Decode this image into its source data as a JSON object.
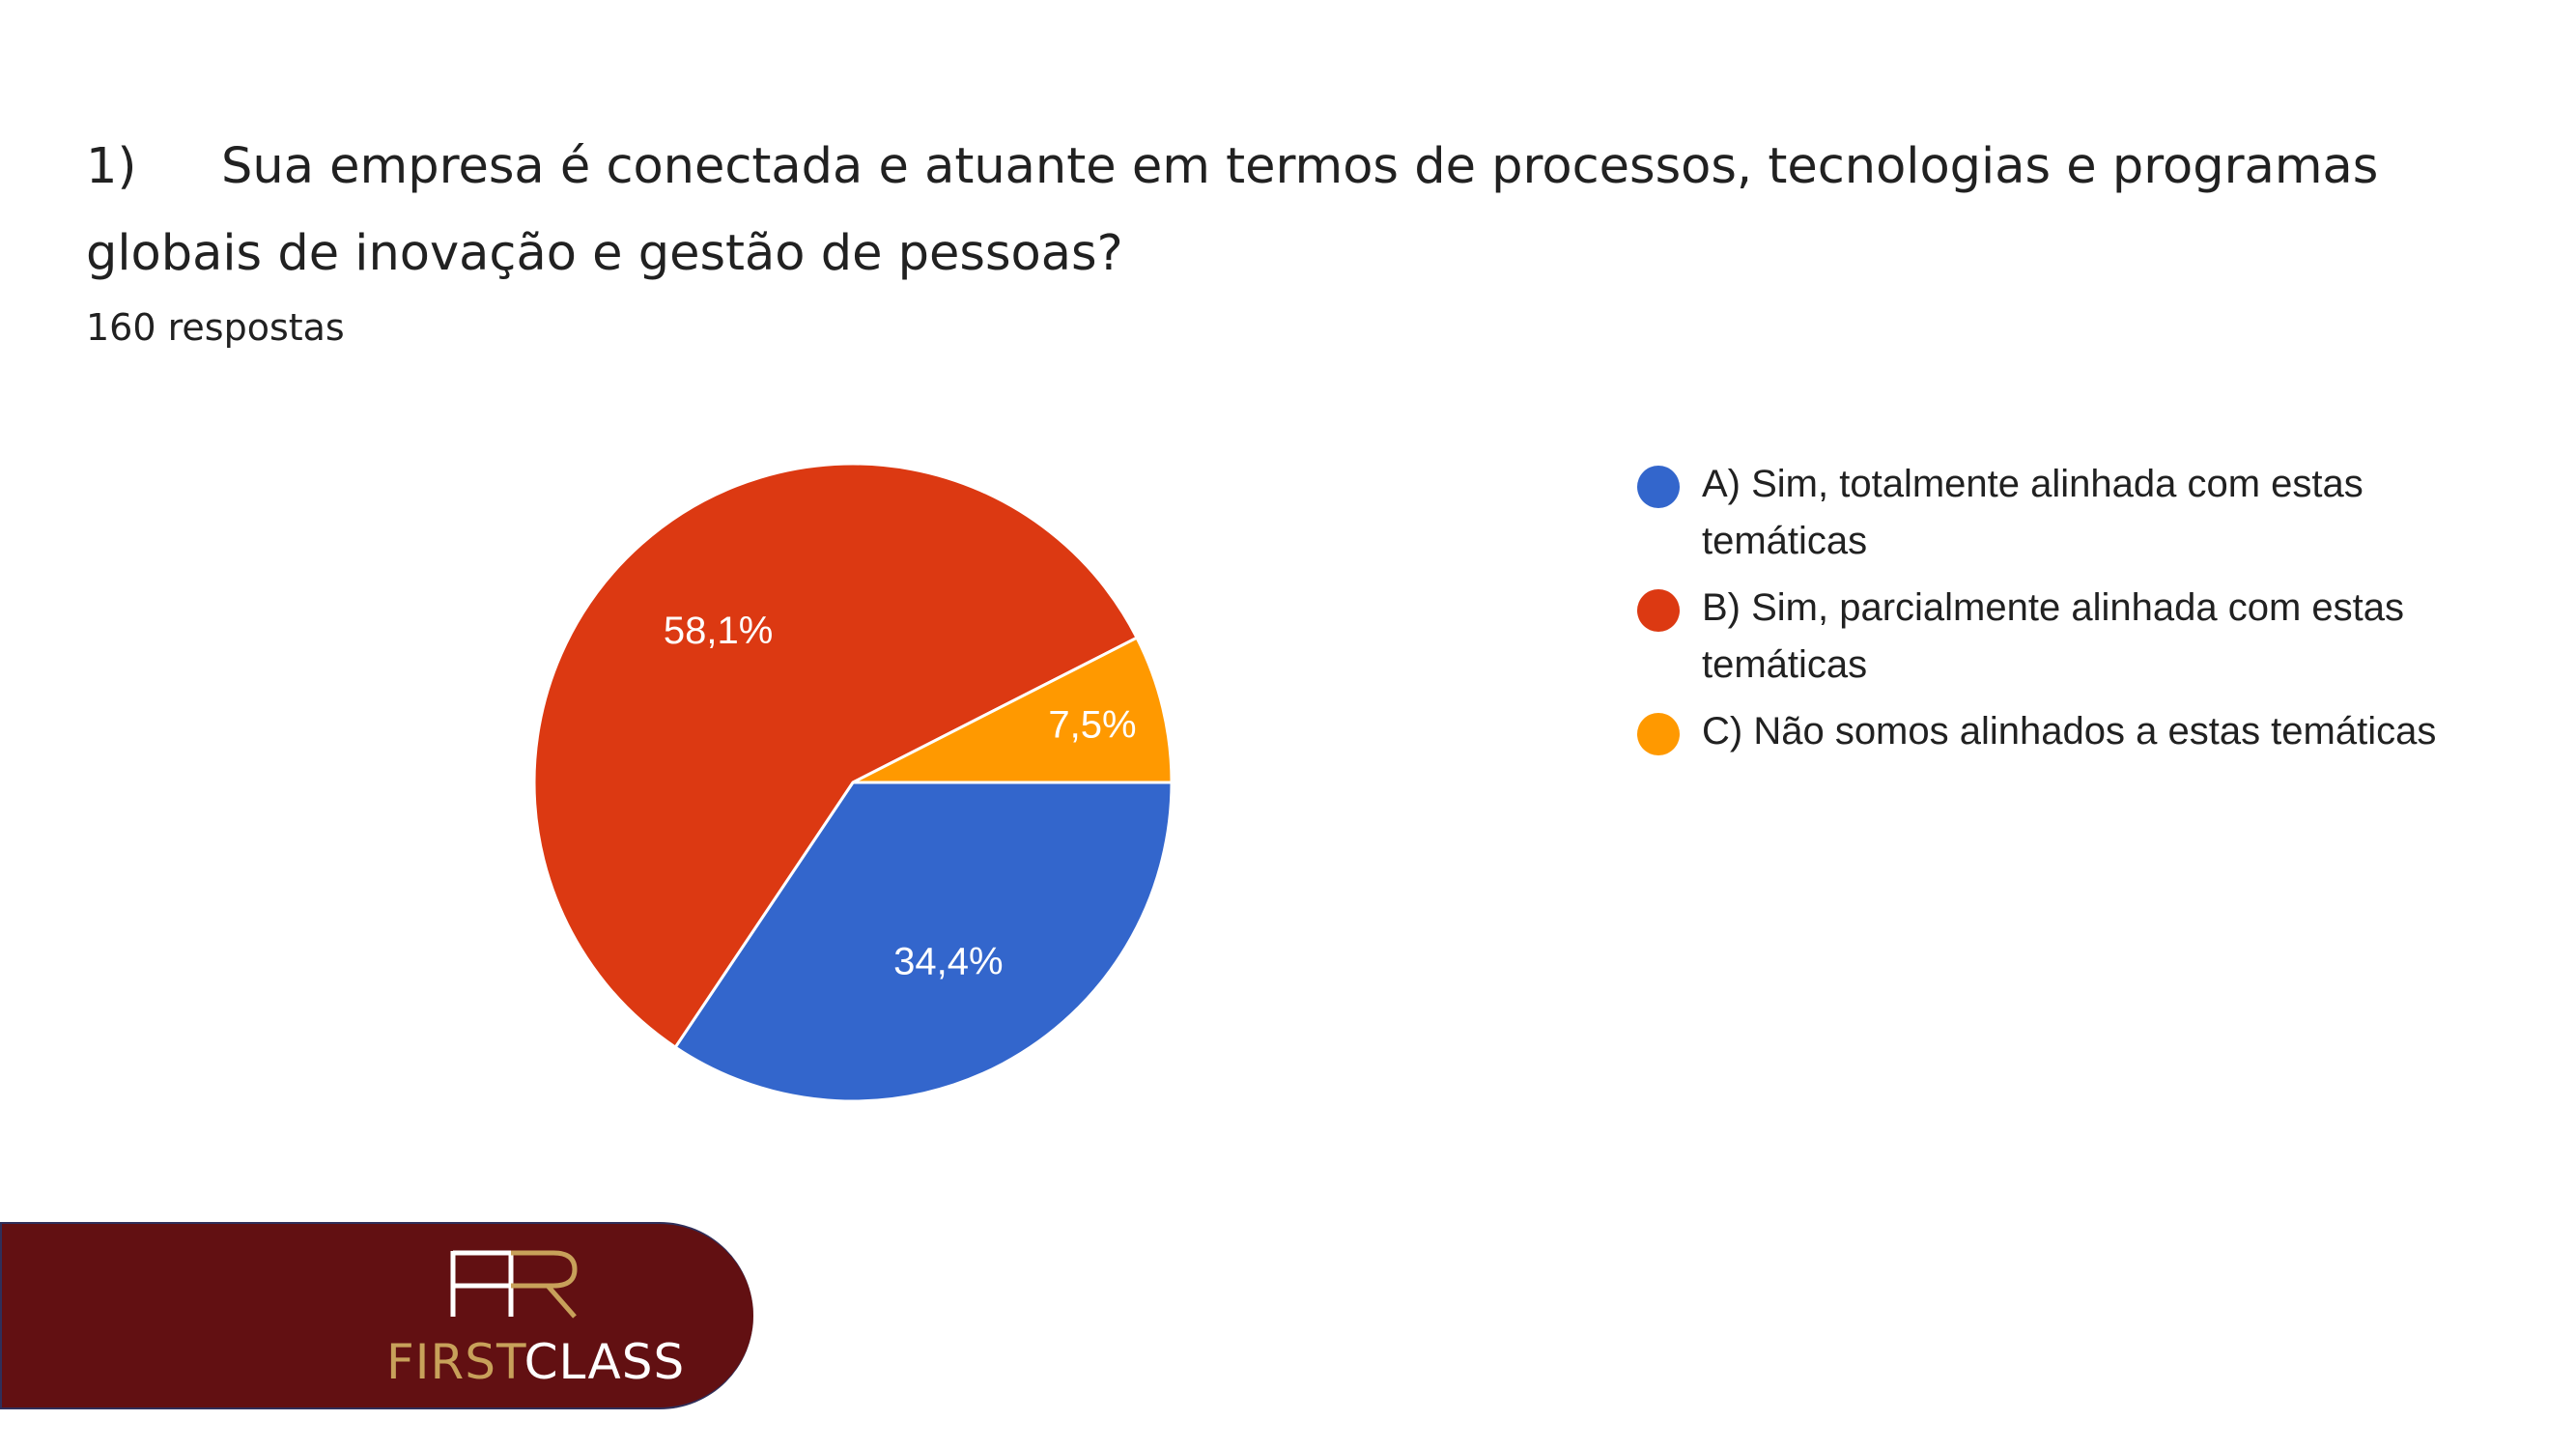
{
  "question": {
    "number": "1)",
    "text": "Sua empresa é conectada e atuante em termos de processos, tecnologias e programas globais de inovação e gestão de pessoas?",
    "responses": "160 respostas"
  },
  "chart_data": {
    "type": "pie",
    "title": "",
    "categories": [
      "A) Sim, totalmente alinhada com estas temáticas",
      "B) Sim, parcialmente alinhada com estas temáticas",
      "C) Não somos alinhados a estas temáticas"
    ],
    "values": [
      34.4,
      58.1,
      7.5
    ],
    "labels": [
      "34,4%",
      "58,1%",
      "7,5%"
    ],
    "colors": [
      "#3366cc",
      "#dc3912",
      "#ff9900"
    ],
    "start_angle_deg": 90,
    "direction": "clockwise",
    "legend_position": "right"
  },
  "brand": {
    "logo_letters": "HR",
    "word_first": "FIRST",
    "word_class": "CLASS",
    "bar_color": "#621012",
    "gold_color": "#c8a15a"
  }
}
